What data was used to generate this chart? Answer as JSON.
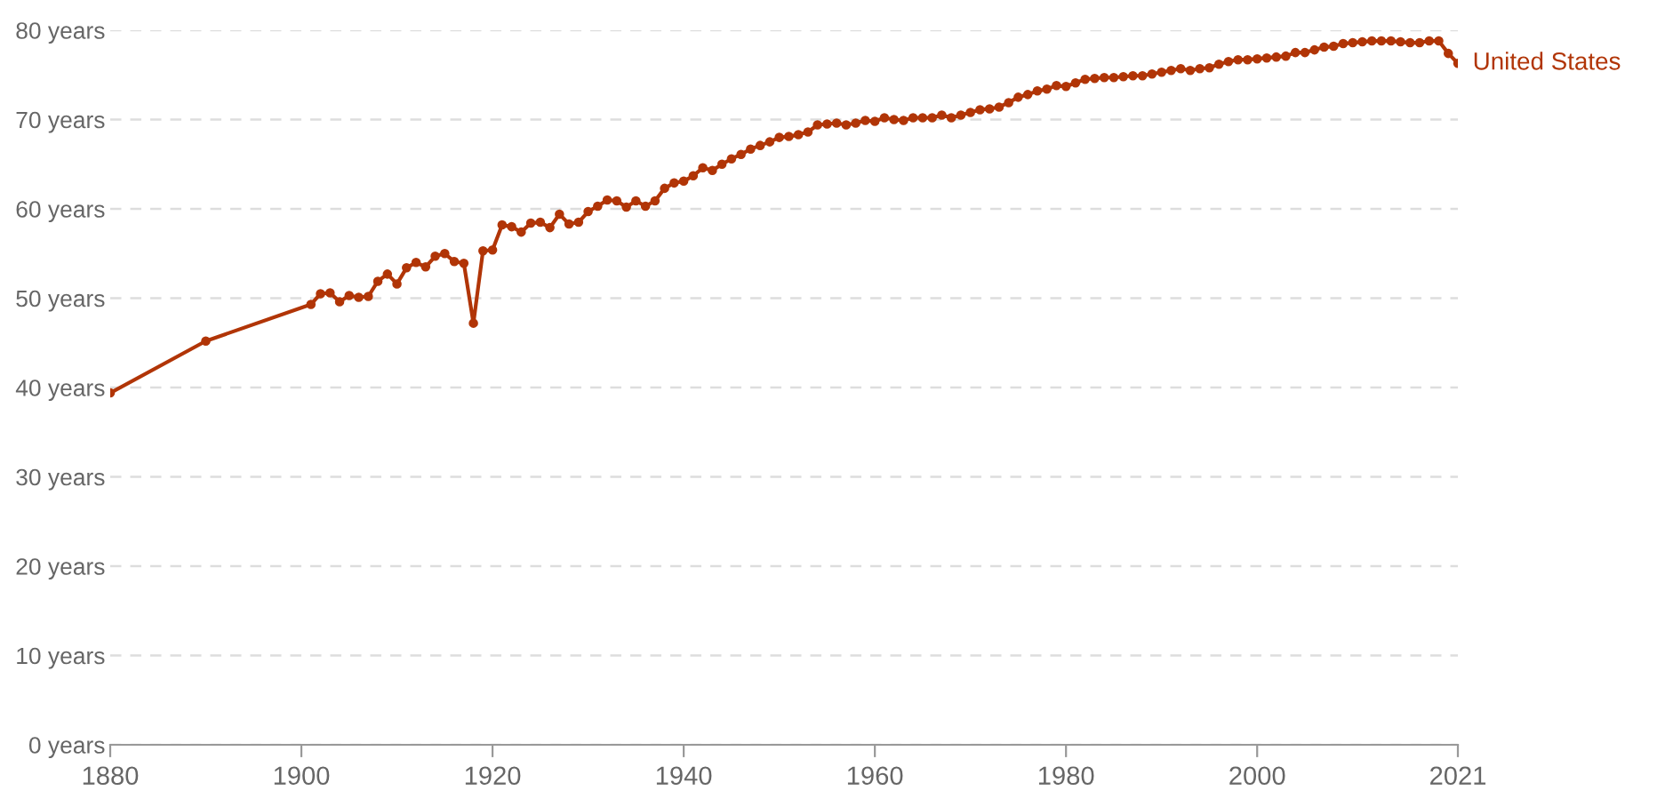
{
  "chart_data": {
    "type": "line",
    "x": [
      1880,
      1890,
      1901,
      1902,
      1903,
      1904,
      1905,
      1906,
      1907,
      1908,
      1909,
      1910,
      1911,
      1912,
      1913,
      1914,
      1915,
      1916,
      1917,
      1918,
      1919,
      1920,
      1921,
      1922,
      1923,
      1924,
      1925,
      1926,
      1927,
      1928,
      1929,
      1930,
      1931,
      1932,
      1933,
      1934,
      1935,
      1936,
      1937,
      1938,
      1939,
      1940,
      1941,
      1942,
      1943,
      1944,
      1945,
      1946,
      1947,
      1948,
      1949,
      1950,
      1951,
      1952,
      1953,
      1954,
      1955,
      1956,
      1957,
      1958,
      1959,
      1960,
      1961,
      1962,
      1963,
      1964,
      1965,
      1966,
      1967,
      1968,
      1969,
      1970,
      1971,
      1972,
      1973,
      1974,
      1975,
      1976,
      1977,
      1978,
      1979,
      1980,
      1981,
      1982,
      1983,
      1984,
      1985,
      1986,
      1987,
      1988,
      1989,
      1990,
      1991,
      1992,
      1993,
      1994,
      1995,
      1996,
      1997,
      1998,
      1999,
      2000,
      2001,
      2002,
      2003,
      2004,
      2005,
      2006,
      2007,
      2008,
      2009,
      2010,
      2011,
      2012,
      2013,
      2014,
      2015,
      2016,
      2017,
      2018,
      2019,
      2020,
      2021
    ],
    "series": [
      {
        "name": "United States",
        "color": "#b13507",
        "values": [
          39.4,
          45.2,
          49.3,
          50.5,
          50.6,
          49.6,
          50.3,
          50.1,
          50.2,
          51.9,
          52.7,
          51.6,
          53.4,
          54.0,
          53.5,
          54.7,
          55.0,
          54.1,
          53.9,
          47.2,
          55.3,
          55.4,
          58.2,
          58.0,
          57.4,
          58.4,
          58.5,
          57.9,
          59.4,
          58.3,
          58.5,
          59.7,
          60.3,
          61.0,
          60.9,
          60.2,
          60.9,
          60.3,
          60.9,
          62.3,
          62.9,
          63.1,
          63.7,
          64.6,
          64.3,
          65.0,
          65.6,
          66.1,
          66.7,
          67.1,
          67.5,
          68.0,
          68.1,
          68.3,
          68.6,
          69.4,
          69.5,
          69.6,
          69.4,
          69.6,
          69.9,
          69.8,
          70.2,
          70.0,
          69.9,
          70.2,
          70.2,
          70.2,
          70.5,
          70.2,
          70.5,
          70.8,
          71.1,
          71.2,
          71.4,
          71.9,
          72.5,
          72.8,
          73.2,
          73.4,
          73.8,
          73.7,
          74.1,
          74.5,
          74.6,
          74.7,
          74.7,
          74.8,
          74.9,
          74.9,
          75.1,
          75.3,
          75.5,
          75.7,
          75.5,
          75.7,
          75.8,
          76.2,
          76.5,
          76.7,
          76.7,
          76.8,
          76.9,
          77.0,
          77.1,
          77.5,
          77.5,
          77.8,
          78.1,
          78.2,
          78.5,
          78.6,
          78.7,
          78.8,
          78.8,
          78.8,
          78.7,
          78.6,
          78.6,
          78.8,
          78.8,
          77.4,
          76.3
        ]
      }
    ],
    "xlim": [
      1880,
      2021
    ],
    "xticks": [
      1880,
      1900,
      1920,
      1940,
      1960,
      1980,
      2000,
      2021
    ],
    "ylim": [
      0,
      80
    ],
    "yticks": [
      {
        "value": 0,
        "label": "0 years"
      },
      {
        "value": 10,
        "label": "10 years"
      },
      {
        "value": 20,
        "label": "20 years"
      },
      {
        "value": 30,
        "label": "30 years"
      },
      {
        "value": 40,
        "label": "40 years"
      },
      {
        "value": 50,
        "label": "50 years"
      },
      {
        "value": 60,
        "label": "60 years"
      },
      {
        "value": 70,
        "label": "70 years"
      },
      {
        "value": 80,
        "label": "80 years"
      }
    ],
    "grid": "y",
    "marker": "circle",
    "line_style": "solid",
    "legend": "right"
  }
}
